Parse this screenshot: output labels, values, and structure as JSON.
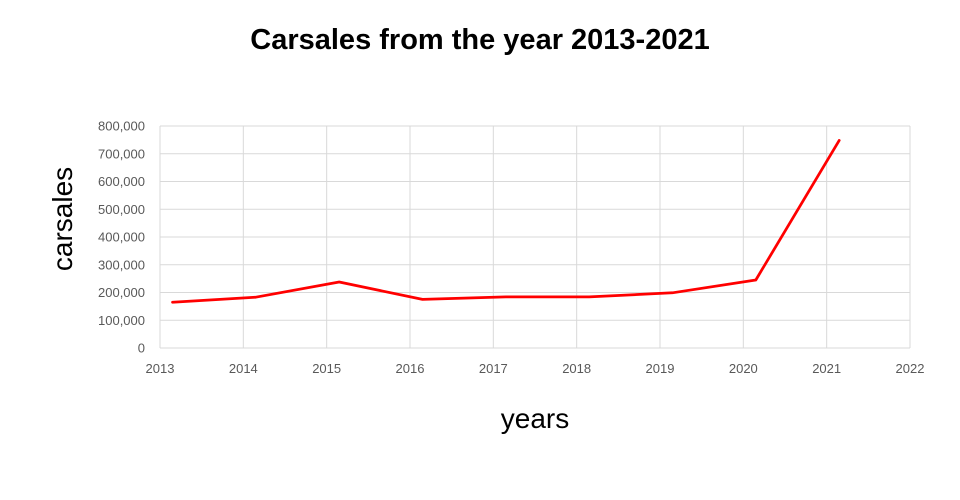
{
  "chart_data": {
    "type": "line",
    "title": "Carsales from the year 2013-2021",
    "xlabel": "years",
    "ylabel": "carsales",
    "x_ticks": [
      "2013",
      "2014",
      "2015",
      "2016",
      "2017",
      "2018",
      "2019",
      "2020",
      "2021",
      "2022"
    ],
    "y_ticks": [
      "0",
      "100,000",
      "200,000",
      "300,000",
      "400,000",
      "500,000",
      "600,000",
      "700,000",
      "800,000"
    ],
    "xlim": [
      2013,
      2022
    ],
    "ylim": [
      0,
      800000
    ],
    "grid": true,
    "legend": "none",
    "series": [
      {
        "color": "#ff0000",
        "x": [
          2013,
          2014,
          2015,
          2016,
          2017,
          2018,
          2019,
          2020,
          2021
        ],
        "values": [
          165000,
          183000,
          238000,
          175000,
          184000,
          184000,
          199000,
          245000,
          748000
        ]
      }
    ]
  }
}
